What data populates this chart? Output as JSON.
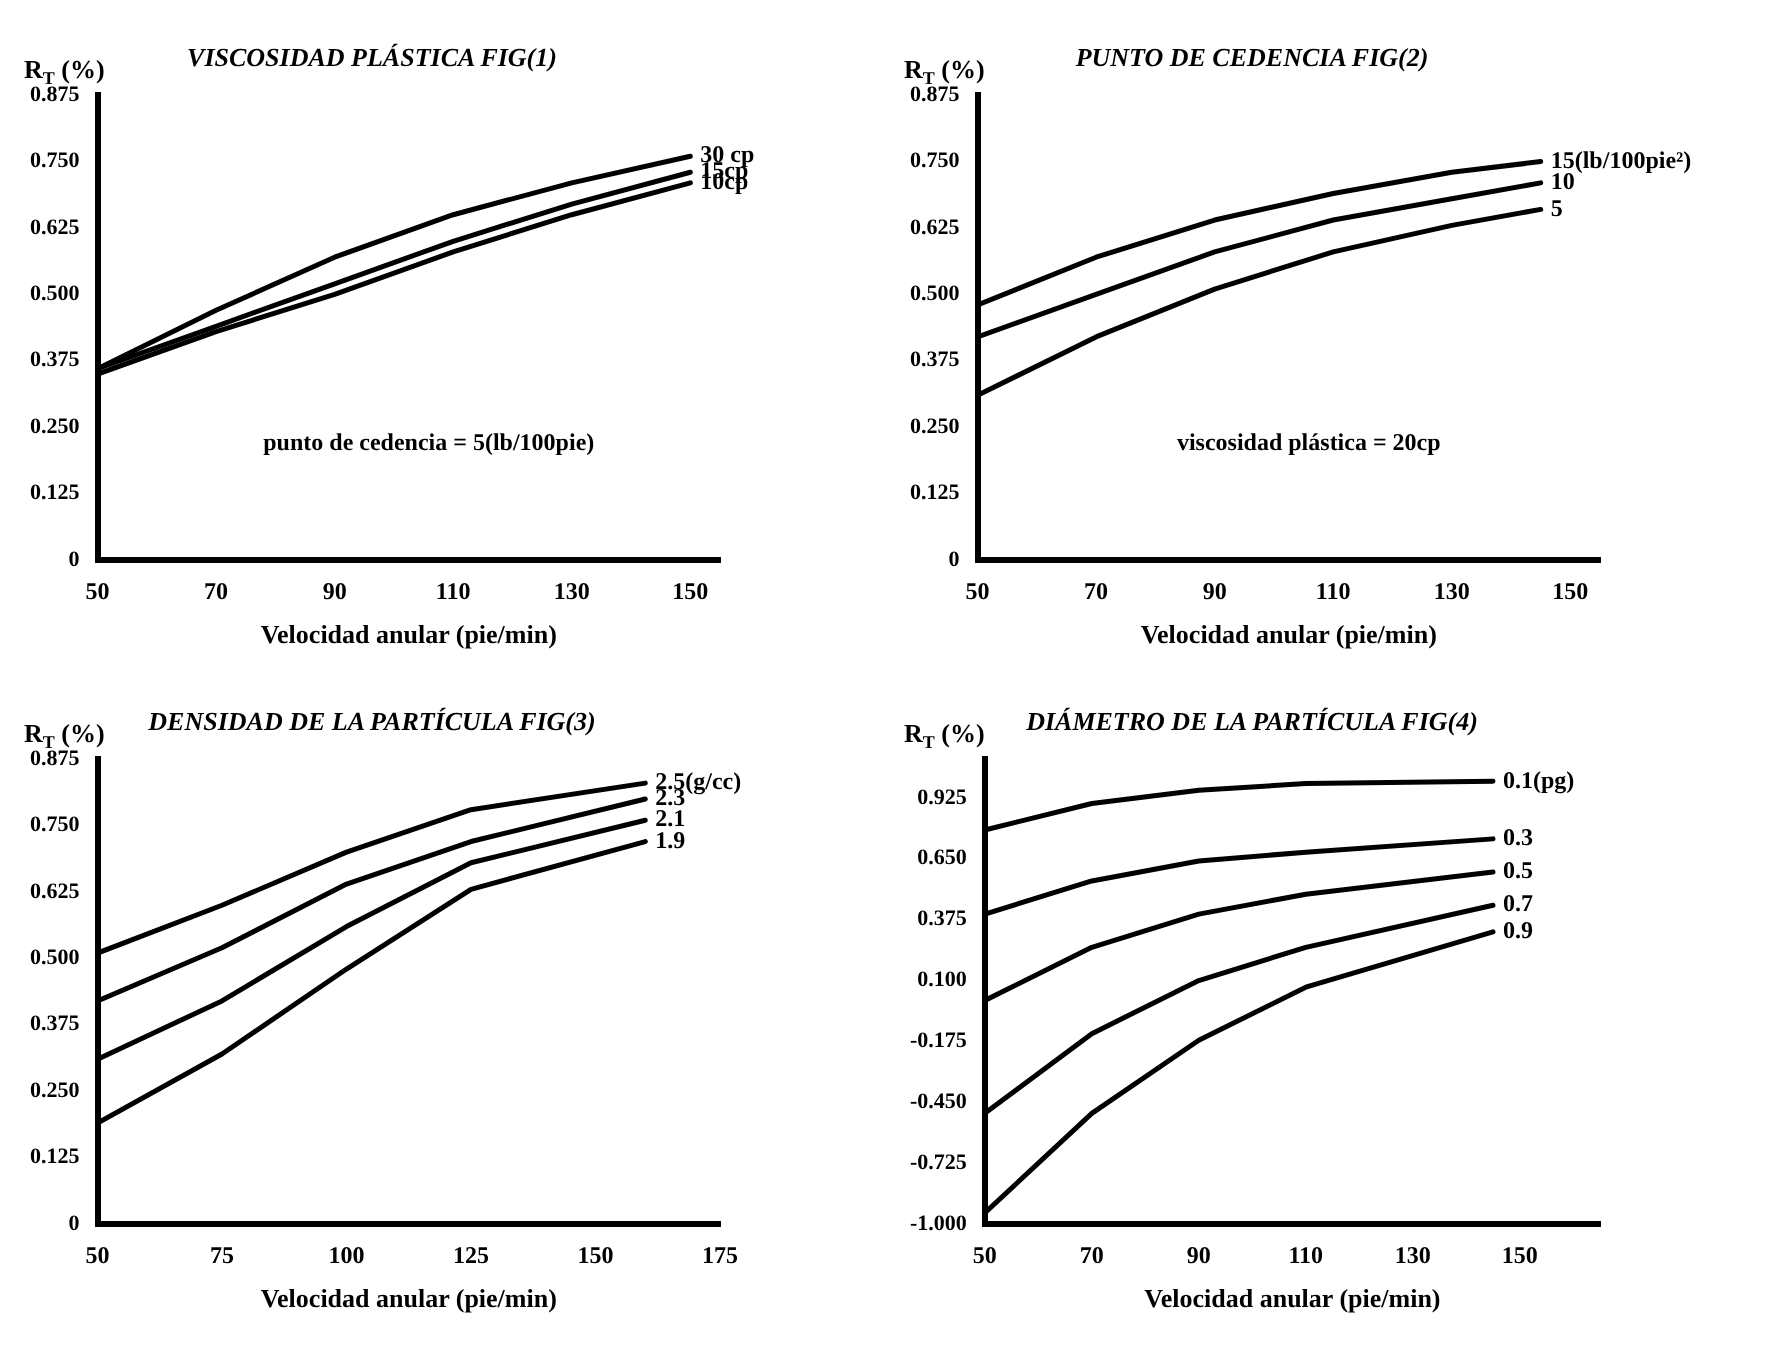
{
  "chart_data": [
    {
      "type": "line",
      "title": "VISCOSIDAD PLÁSTICA FIG(1)",
      "xlabel": "Velocidad anular (pie/min)",
      "ylabel": "R$_{T}$ (%)",
      "x": [
        50,
        70,
        90,
        110,
        130,
        150
      ],
      "xlim": [
        50,
        155
      ],
      "xticks": [
        50,
        70,
        90,
        110,
        130,
        150
      ],
      "ylim": [
        0,
        0.875
      ],
      "yticks": [
        0,
        {
          "value": 0.125,
          "label": "0.125"
        },
        {
          "value": 0.25,
          "label": "0.250"
        },
        0.375,
        {
          "value": 0.5,
          "label": "0.500"
        },
        0.625,
        {
          "value": 0.75,
          "label": "0.750"
        },
        0.875
      ],
      "grid": false,
      "legend": false,
      "marker": "none",
      "line_style": "solid",
      "annotations": [
        "punto de cedencia = 5(lb/100pie)"
      ],
      "series": [
        {
          "name": "30 cp",
          "color": "#000000",
          "values": [
            0.36,
            0.47,
            0.57,
            0.65,
            0.71,
            0.76
          ]
        },
        {
          "name": "15cp",
          "color": "#000000",
          "values": [
            0.36,
            0.44,
            0.52,
            0.6,
            0.67,
            0.73
          ]
        },
        {
          "name": "10cp",
          "color": "#000000",
          "values": [
            0.35,
            0.43,
            0.5,
            0.58,
            0.65,
            0.71
          ]
        }
      ]
    },
    {
      "type": "line",
      "title": "PUNTO DE CEDENCIA FIG(2)",
      "xlabel": "Velocidad anular (pie/min)",
      "ylabel": "R$_{T}$ (%)",
      "x": [
        50,
        70,
        90,
        110,
        130,
        145
      ],
      "xlim": [
        50,
        155
      ],
      "xticks": [
        50,
        70,
        90,
        110,
        130,
        150
      ],
      "ylim": [
        0,
        0.875
      ],
      "yticks": [
        0,
        {
          "value": 0.125,
          "label": "0.125"
        },
        {
          "value": 0.25,
          "label": "0.250"
        },
        0.375,
        {
          "value": 0.5,
          "label": "0.500"
        },
        0.625,
        {
          "value": 0.75,
          "label": "0.750"
        },
        0.875
      ],
      "grid": false,
      "legend": false,
      "marker": "none",
      "line_style": "solid",
      "annotations": [
        "viscosidad plástica = 20cp"
      ],
      "series": [
        {
          "name": "15(lb/100pie²)",
          "color": "#000000",
          "values": [
            0.48,
            0.57,
            0.64,
            0.69,
            0.73,
            0.75
          ]
        },
        {
          "name": "10",
          "color": "#000000",
          "values": [
            0.42,
            0.5,
            0.58,
            0.64,
            0.68,
            0.71
          ]
        },
        {
          "name": "5",
          "color": "#000000",
          "values": [
            0.31,
            0.42,
            0.51,
            0.58,
            0.63,
            0.66
          ]
        }
      ]
    },
    {
      "type": "line",
      "title": "DENSIDAD DE LA PARTÍCULA FIG(3)",
      "xlabel": "Velocidad anular (pie/min)",
      "ylabel": "R$_{T}$ (%)",
      "x": [
        50,
        75,
        100,
        125,
        160
      ],
      "xlim": [
        50,
        175
      ],
      "xticks": [
        50,
        75,
        100,
        125,
        150,
        175
      ],
      "ylim": [
        0,
        0.875
      ],
      "yticks": [
        0,
        {
          "value": 0.125,
          "label": "0.125"
        },
        {
          "value": 0.25,
          "label": "0.250"
        },
        0.375,
        {
          "value": 0.5,
          "label": "0.500"
        },
        0.625,
        {
          "value": 0.75,
          "label": "0.750"
        },
        0.875
      ],
      "grid": false,
      "legend": false,
      "marker": "none",
      "line_style": "solid",
      "series": [
        {
          "name": "2.5(g/cc)",
          "color": "#000000",
          "values": [
            0.51,
            0.6,
            0.7,
            0.78,
            0.83
          ]
        },
        {
          "name": "2.3",
          "color": "#000000",
          "values": [
            0.42,
            0.52,
            0.64,
            0.72,
            0.8
          ]
        },
        {
          "name": "2.1",
          "color": "#000000",
          "values": [
            0.31,
            0.42,
            0.56,
            0.68,
            0.76
          ]
        },
        {
          "name": "1.9",
          "color": "#000000",
          "values": [
            0.19,
            0.32,
            0.48,
            0.63,
            0.72
          ]
        }
      ]
    },
    {
      "type": "line",
      "title": "DIÁMETRO DE LA PARTÍCULA FIG(4)",
      "xlabel": "Velocidad anular (pie/min)",
      "ylabel": "R$_{T}$ (%)",
      "x": [
        50,
        70,
        90,
        110,
        145
      ],
      "xlim": [
        50,
        165
      ],
      "xticks": [
        50,
        70,
        90,
        110,
        130,
        150
      ],
      "ylim": [
        -1,
        1.1
      ],
      "yticks": [
        {
          "value": -1,
          "label": "-1.000"
        },
        -0.725,
        {
          "value": -0.45,
          "label": "-0.450"
        },
        -0.175,
        {
          "value": 0.1,
          "label": "0.100"
        },
        0.375,
        {
          "value": 0.65,
          "label": "0.650"
        },
        0.925
      ],
      "grid": false,
      "legend": false,
      "marker": "none",
      "line_style": "solid",
      "series": [
        {
          "name": "0.1(pg)",
          "color": "#000000",
          "values": [
            0.78,
            0.9,
            0.96,
            0.99,
            1.0
          ]
        },
        {
          "name": "0.3",
          "color": "#000000",
          "values": [
            0.4,
            0.55,
            0.64,
            0.68,
            0.74
          ]
        },
        {
          "name": "0.5",
          "color": "#000000",
          "values": [
            0.01,
            0.25,
            0.4,
            0.49,
            0.59
          ]
        },
        {
          "name": "0.7",
          "color": "#000000",
          "values": [
            -0.5,
            -0.14,
            0.1,
            0.25,
            0.44
          ]
        },
        {
          "name": "0.9",
          "color": "#000000",
          "values": [
            -0.95,
            -0.5,
            -0.17,
            0.07,
            0.32
          ]
        }
      ]
    }
  ]
}
